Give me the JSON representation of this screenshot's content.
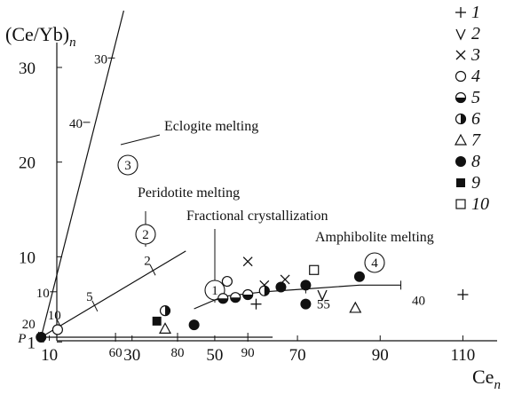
{
  "chart_data": {
    "type": "scatter",
    "xlabel": "Ce",
    "xlabel_sub": "n",
    "ylabel": "(Ce/Yb)",
    "ylabel_sub": "n",
    "xlim": [
      0,
      120
    ],
    "ylim": [
      0,
      36
    ],
    "x_ticks": [
      "10",
      "30",
      "50",
      "70",
      "90",
      "110"
    ],
    "y_ticks": [
      "1",
      "10",
      "20",
      "30"
    ],
    "y_tick_values": [
      1,
      10,
      20,
      30
    ],
    "curves": [
      {
        "name": "Eclogite melting",
        "number": "3",
        "points": [
          [
            8,
            1.5
          ],
          [
            28,
            36
          ]
        ],
        "tick_labels": [
          {
            "label": "10",
            "at": [
              11,
              6.3
            ]
          },
          {
            "label": "40",
            "at": [
              19,
              24.2
            ]
          },
          {
            "label": "30",
            "at": [
              25,
              31
            ]
          }
        ]
      },
      {
        "name": "Peridotite melting",
        "number": "2",
        "points": [
          [
            8,
            1.5
          ],
          [
            43,
            10.6
          ]
        ],
        "tick_labels": [
          {
            "label": "20",
            "at": [
              8,
              1.5
            ]
          },
          {
            "label": "10",
            "at": [
              12.5,
              2.8
            ]
          },
          {
            "label": "5",
            "at": [
              21,
              4.8
            ]
          },
          {
            "label": "2",
            "at": [
              35,
              8.6
            ]
          }
        ]
      },
      {
        "name": "Fractional crystallization",
        "number": "1",
        "points": [
          [
            8,
            1.5
          ],
          [
            64,
            1.5
          ]
        ],
        "tick_labels": [
          {
            "label": "60",
            "at": [
              26,
              1.5
            ]
          },
          {
            "label": "80",
            "at": [
              41,
              1.5
            ]
          },
          {
            "label": "90",
            "at": [
              58,
              1.5
            ]
          }
        ]
      },
      {
        "name": "Amphibolite melting",
        "number": "4",
        "points": [
          [
            45,
            4.5
          ],
          [
            52,
            5.8
          ],
          [
            62,
            6.3
          ],
          [
            72,
            6.6
          ],
          [
            85,
            7.0
          ],
          [
            95,
            7.0
          ]
        ],
        "tick_labels": [
          {
            "label": "55",
            "at": [
              72,
              6.6
            ]
          },
          {
            "label": "40",
            "at": [
              95,
              7.0
            ]
          }
        ]
      }
    ],
    "series": [
      {
        "name": "1",
        "marker": "plus",
        "points": [
          [
            60,
            5.0
          ],
          [
            110,
            6.0
          ]
        ]
      },
      {
        "name": "2",
        "marker": "v",
        "points": [
          [
            76,
            6.0
          ]
        ]
      },
      {
        "name": "3",
        "marker": "x",
        "points": [
          [
            58,
            9.5
          ],
          [
            62,
            7.0
          ],
          [
            67,
            7.6
          ]
        ]
      },
      {
        "name": "4",
        "marker": "circle",
        "points": [
          [
            12,
            2.3
          ],
          [
            53,
            7.4
          ]
        ]
      },
      {
        "name": "5",
        "marker": "half-bottom",
        "points": [
          [
            52,
            5.6
          ],
          [
            55,
            5.7
          ],
          [
            58,
            6.0
          ]
        ]
      },
      {
        "name": "6",
        "marker": "half-right",
        "points": [
          [
            38,
            4.3
          ],
          [
            62,
            6.4
          ]
        ]
      },
      {
        "name": "7",
        "marker": "triangle",
        "points": [
          [
            38,
            2.4
          ],
          [
            84,
            4.6
          ]
        ]
      },
      {
        "name": "8",
        "marker": "filled",
        "points": [
          [
            8,
            1.5
          ],
          [
            45,
            2.8
          ],
          [
            66,
            6.8
          ],
          [
            72,
            7.0
          ],
          [
            72,
            5.0
          ],
          [
            85,
            7.9
          ]
        ]
      },
      {
        "name": "9",
        "marker": "square",
        "points": [
          [
            36,
            3.2
          ]
        ]
      },
      {
        "name": "10",
        "marker": "open-square",
        "points": [
          [
            74,
            8.6
          ]
        ]
      }
    ],
    "p_label": "P",
    "grid": false,
    "legend_placement": "top-right"
  }
}
